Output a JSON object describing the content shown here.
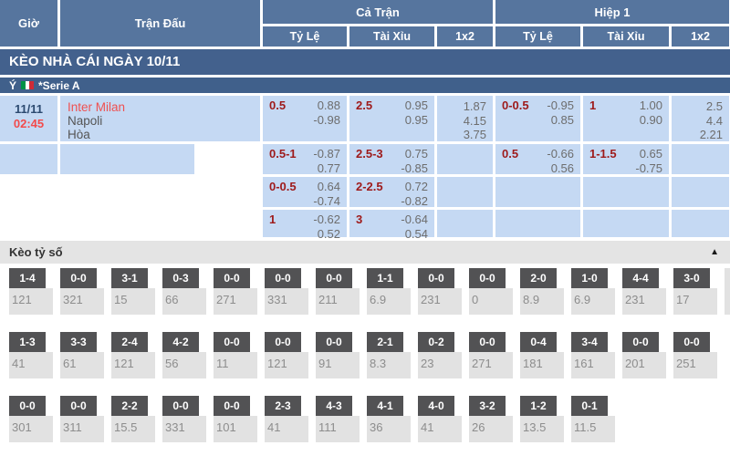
{
  "header": {
    "col_gio": "Giờ",
    "col_match": "Trận Đấu",
    "group_full": "Cả Trận",
    "group_h1": "Hiệp 1",
    "sub": [
      "Tỷ Lệ",
      "Tài Xỉu",
      "1x2",
      "Tỷ Lệ",
      "Tài Xỉu",
      "1x2"
    ]
  },
  "section_bar": {
    "title": "KÈO NHÀ CÁI NGÀY 10/11"
  },
  "league_bar": {
    "country": "Ý",
    "league": "*Serie A"
  },
  "match": {
    "date": "11/11",
    "time": "02:45",
    "home": "Inter Milan",
    "away": "Napoli",
    "draw_label": "Hòa"
  },
  "odds_rows": [
    {
      "ft_hdp": {
        "line": "0.5",
        "top": "0.88",
        "bottom": "-0.98"
      },
      "ft_ou": {
        "line": "2.5",
        "top": "0.95",
        "bottom": "0.95"
      },
      "ft_1x2": [
        "1.87",
        "4.15",
        "3.75"
      ],
      "h1_hdp": {
        "line": "0-0.5",
        "top": "-0.95",
        "bottom": "0.85"
      },
      "h1_ou": {
        "line": "1",
        "top": "1.00",
        "bottom": "0.90"
      },
      "h1_1x2": [
        "2.5",
        "4.4",
        "2.21"
      ]
    },
    {
      "ft_hdp": {
        "line": "0.5-1",
        "top": "-0.87",
        "bottom": "0.77"
      },
      "ft_ou": {
        "line": "2.5-3",
        "top": "0.75",
        "bottom": "-0.85"
      },
      "ft_1x2": [],
      "h1_hdp": {
        "line": "0.5",
        "top": "-0.66",
        "bottom": "0.56"
      },
      "h1_ou": {
        "line": "1-1.5",
        "top": "0.65",
        "bottom": "-0.75"
      },
      "h1_1x2": []
    },
    {
      "ft_hdp": {
        "line": "0-0.5",
        "top": "0.64",
        "bottom": "-0.74"
      },
      "ft_ou": {
        "line": "2-2.5",
        "top": "0.72",
        "bottom": "-0.82"
      },
      "ft_1x2": [],
      "h1_hdp": null,
      "h1_ou": null,
      "h1_1x2": []
    },
    {
      "ft_hdp": {
        "line": "1",
        "top": "-0.62",
        "bottom": "0.52"
      },
      "ft_ou": {
        "line": "3",
        "top": "-0.64",
        "bottom": "0.54"
      },
      "ft_1x2": [],
      "h1_hdp": null,
      "h1_ou": null,
      "h1_1x2": []
    }
  ],
  "score_section": {
    "title": "Kèo tỷ số",
    "collapse_icon": "▲"
  },
  "score_grid": {
    "rows": [
      [
        {
          "score": "1-4",
          "odds": "121"
        },
        {
          "score": "0-0",
          "odds": "321"
        },
        {
          "score": "3-1",
          "odds": "15"
        },
        {
          "score": "0-3",
          "odds": "66"
        },
        {
          "score": "0-0",
          "odds": "271"
        },
        {
          "score": "0-0",
          "odds": "331"
        },
        {
          "score": "0-0",
          "odds": "211"
        },
        {
          "score": "1-1",
          "odds": "6.9"
        },
        {
          "score": "0-0",
          "odds": "231"
        },
        {
          "score": "0-0",
          "odds": "0"
        },
        {
          "score": "2-0",
          "odds": "8.9"
        },
        {
          "score": "1-0",
          "odds": "6.9"
        },
        {
          "score": "4-4",
          "odds": "231"
        },
        {
          "score": "3-0",
          "odds": "17"
        }
      ],
      [
        {
          "score": "1-3",
          "odds": "41"
        },
        {
          "score": "3-3",
          "odds": "61"
        },
        {
          "score": "2-4",
          "odds": "121"
        },
        {
          "score": "4-2",
          "odds": "56"
        },
        {
          "score": "0-0",
          "odds": "11"
        },
        {
          "score": "0-0",
          "odds": "121"
        },
        {
          "score": "0-0",
          "odds": "91"
        },
        {
          "score": "2-1",
          "odds": "8.3"
        },
        {
          "score": "0-2",
          "odds": "23"
        },
        {
          "score": "0-0",
          "odds": "271"
        },
        {
          "score": "0-4",
          "odds": "181"
        },
        {
          "score": "3-4",
          "odds": "161"
        },
        {
          "score": "0-0",
          "odds": "201"
        },
        {
          "score": "0-0",
          "odds": "251"
        }
      ],
      [
        {
          "score": "0-0",
          "odds": "301"
        },
        {
          "score": "0-0",
          "odds": "311"
        },
        {
          "score": "2-2",
          "odds": "15.5"
        },
        {
          "score": "0-0",
          "odds": "331"
        },
        {
          "score": "0-0",
          "odds": "101"
        },
        {
          "score": "2-3",
          "odds": "41"
        },
        {
          "score": "4-3",
          "odds": "111"
        },
        {
          "score": "4-1",
          "odds": "36"
        },
        {
          "score": "4-0",
          "odds": "41"
        },
        {
          "score": "3-2",
          "odds": "26"
        },
        {
          "score": "1-2",
          "odds": "13.5"
        },
        {
          "score": "0-1",
          "odds": "11.5"
        }
      ]
    ]
  },
  "colors": {
    "header_blue": "#56759e",
    "section_bar_blue": "#43618d",
    "league_bar_blue": "#40608b",
    "cell_light_blue": "#c5d9f3",
    "handicap_maroon": "#9e1a1a",
    "odds_gray": "#6d6d6d",
    "time_red": "#f24b4b",
    "home_team_red": "#ef5050",
    "score_badge_gray": "#525254",
    "score_body_gray": "#e2e2e2",
    "section_header_gray": "#e4e4e4"
  }
}
